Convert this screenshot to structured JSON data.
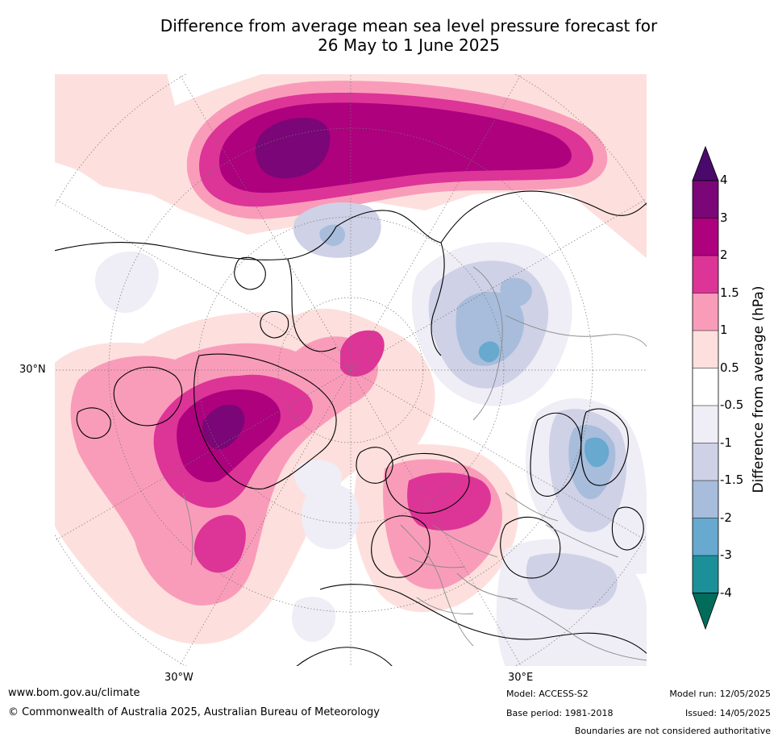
{
  "title_line1": "Difference from average mean sea level pressure forecast for",
  "title_line2": "26 May to 1 June 2025",
  "map_labels": {
    "lat_30n": "30°N",
    "lon_30w": "30°W",
    "lon_30e": "30°E"
  },
  "colorbar": {
    "title": "Difference from average (hPa)",
    "ticks": [
      "4",
      "3",
      "2",
      "1.5",
      "1",
      "0.5",
      "-0.5",
      "-1",
      "-1.5",
      "-2",
      "-3",
      "-4"
    ],
    "colors": {
      "gt4": "#4a0a6b",
      "3_4": "#7a0677",
      "2_3": "#ad017e",
      "1.5_2": "#dd3497",
      "1_1.5": "#f99cba",
      "0.5_1": "#fde0dd",
      "neutral": "#ffffff",
      "m1_m0.5": "#efedf5",
      "m1.5_m1": "#cfd1e6",
      "m2_m1.5": "#a7bddb",
      "m3_m2": "#67a9cf",
      "m4_m3": "#1c9099",
      "lt_m4": "#016c59"
    }
  },
  "footer": {
    "url": "www.bom.gov.au/climate",
    "copyright": "© Commonwealth of Australia 2025, Australian Bureau of Meteorology",
    "model": "Model: ACCESS-S2",
    "base_period": "Base period: 1981-2018",
    "model_run": "Model run: 12/05/2025",
    "issued": "Issued: 14/05/2025",
    "boundaries": "Boundaries are not considered authoritative"
  }
}
